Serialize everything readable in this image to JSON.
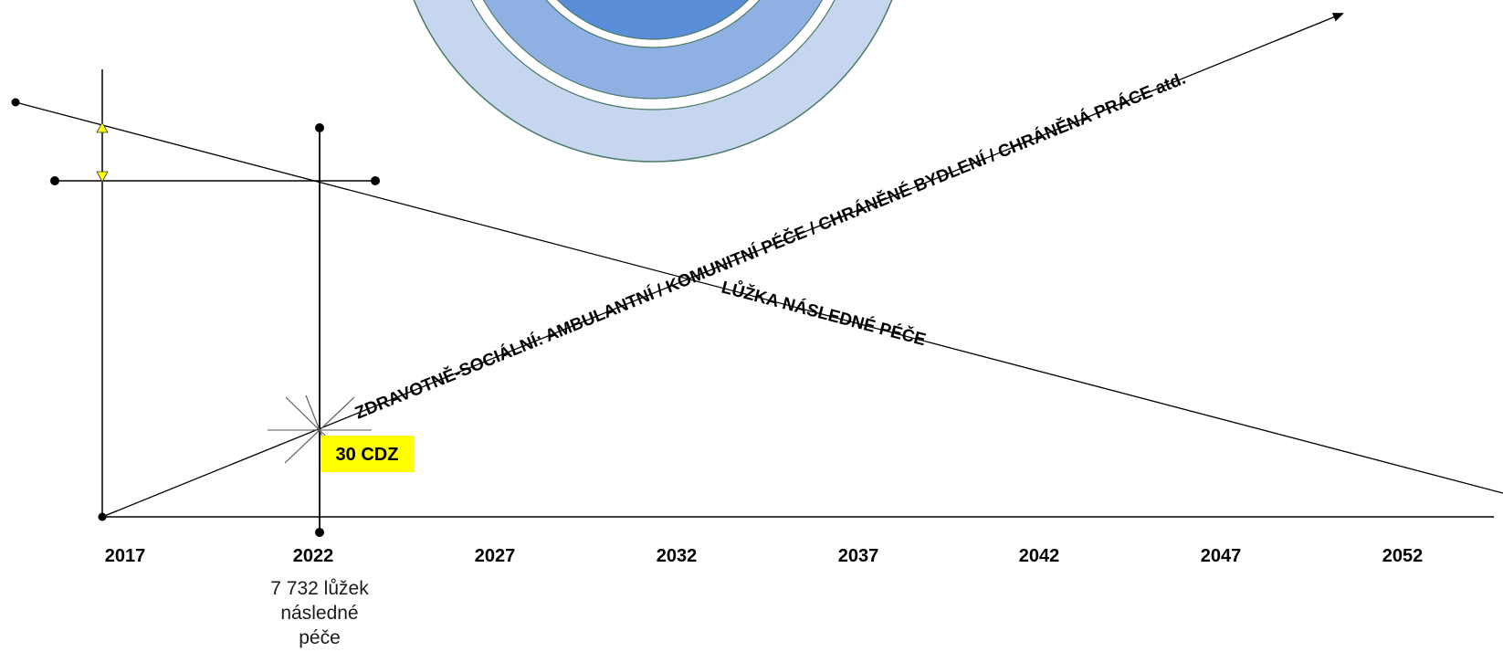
{
  "diagram": {
    "timeline": {
      "years": [
        "2017",
        "2022",
        "2027",
        "2032",
        "2037",
        "2042",
        "2047",
        "2052"
      ]
    },
    "rising_line_label": "ZDRAVOTNĚ-SOCIÁLNÍ: AMBULANTNÍ / KOMUNITNÍ PÉČE / CHRÁNĚNÉ BYDLENÍ / CHRÁNĚNÁ PRÁCE atd.",
    "falling_line_label": "LŮŽKA NÁSLEDNÉ PÉČE",
    "marker_badge": "30 CDZ",
    "note_lines": [
      "7 732 lůžek",
      "následné",
      "péče"
    ],
    "colors": {
      "ring_outer": "#c5d6ee",
      "ring_middle": "#8fb0e2",
      "ring_inner": "#5b8ed8",
      "ring_stroke": "#4a7a6a",
      "badge": "#ffff00",
      "triangle": "#ffff00",
      "line": "#000000"
    }
  }
}
